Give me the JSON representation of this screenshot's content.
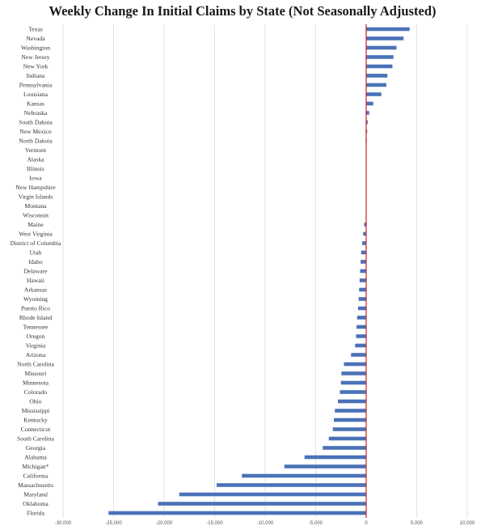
{
  "chart_data": {
    "type": "bar",
    "orientation": "horizontal",
    "title": "Weekly Change In Initial Claims by State (Not Seasonally Adjusted)",
    "xlabel": "",
    "ylabel": "",
    "xlim": [
      -30000,
      10000
    ],
    "xticks": [
      -30000,
      -25000,
      -20000,
      -15000,
      -10000,
      -5000,
      0,
      5000,
      10000
    ],
    "xtick_labels": [
      "-30,000",
      "-25,000",
      "-20,000",
      "-15,000",
      "-10,000",
      "-5,000",
      "0",
      "5,000",
      "10,000"
    ],
    "grid": "vertical gridlines",
    "legend": "none",
    "bar_color": "#4a72b8",
    "zero_line_color": "#cc2222",
    "categories": [
      "Texas",
      "Nevada",
      "Washington",
      "New Jersey",
      "New York",
      "Indiana",
      "Pennsylvania",
      "Louisiana",
      "Kansas",
      "Nebraska",
      "South Dakota",
      "New Mexico",
      "North Dakota",
      "Vermont",
      "Alaska",
      "Illinois",
      "Iowa",
      "New Hampshire",
      "Virgin Islands",
      "Montana",
      "Wisconsin",
      "Maine",
      "West Virginia",
      "District of Columbia",
      "Utah",
      "Idaho",
      "Delaware",
      "Hawaii",
      "Arkansas",
      "Wyoming",
      "Puerto Rico",
      "Rhode Island",
      "Tennessee",
      "Oregon",
      "Virginia",
      "Arizona",
      "North Carolina",
      "Missouri",
      "Minnesota",
      "Colorado",
      "Ohio",
      "Mississippi",
      "Kentucky",
      "Connecticut",
      "South Carolina",
      "Georgia",
      "Alabama",
      "Michigan*",
      "California",
      "Massachusetts",
      "Maryland",
      "Oklahoma",
      "Florida"
    ],
    "values": [
      4300,
      3700,
      3000,
      2700,
      2600,
      2100,
      2000,
      1500,
      700,
      300,
      150,
      100,
      50,
      0,
      0,
      0,
      0,
      0,
      0,
      0,
      0,
      -200,
      -300,
      -400,
      -500,
      -550,
      -600,
      -650,
      -700,
      -750,
      -800,
      -900,
      -950,
      -1000,
      -1100,
      -1500,
      -2200,
      -2450,
      -2500,
      -2600,
      -2800,
      -3100,
      -3200,
      -3300,
      -3700,
      -4300,
      -6100,
      -8100,
      -12300,
      -14800,
      -18500,
      -20600,
      -25500
    ]
  }
}
